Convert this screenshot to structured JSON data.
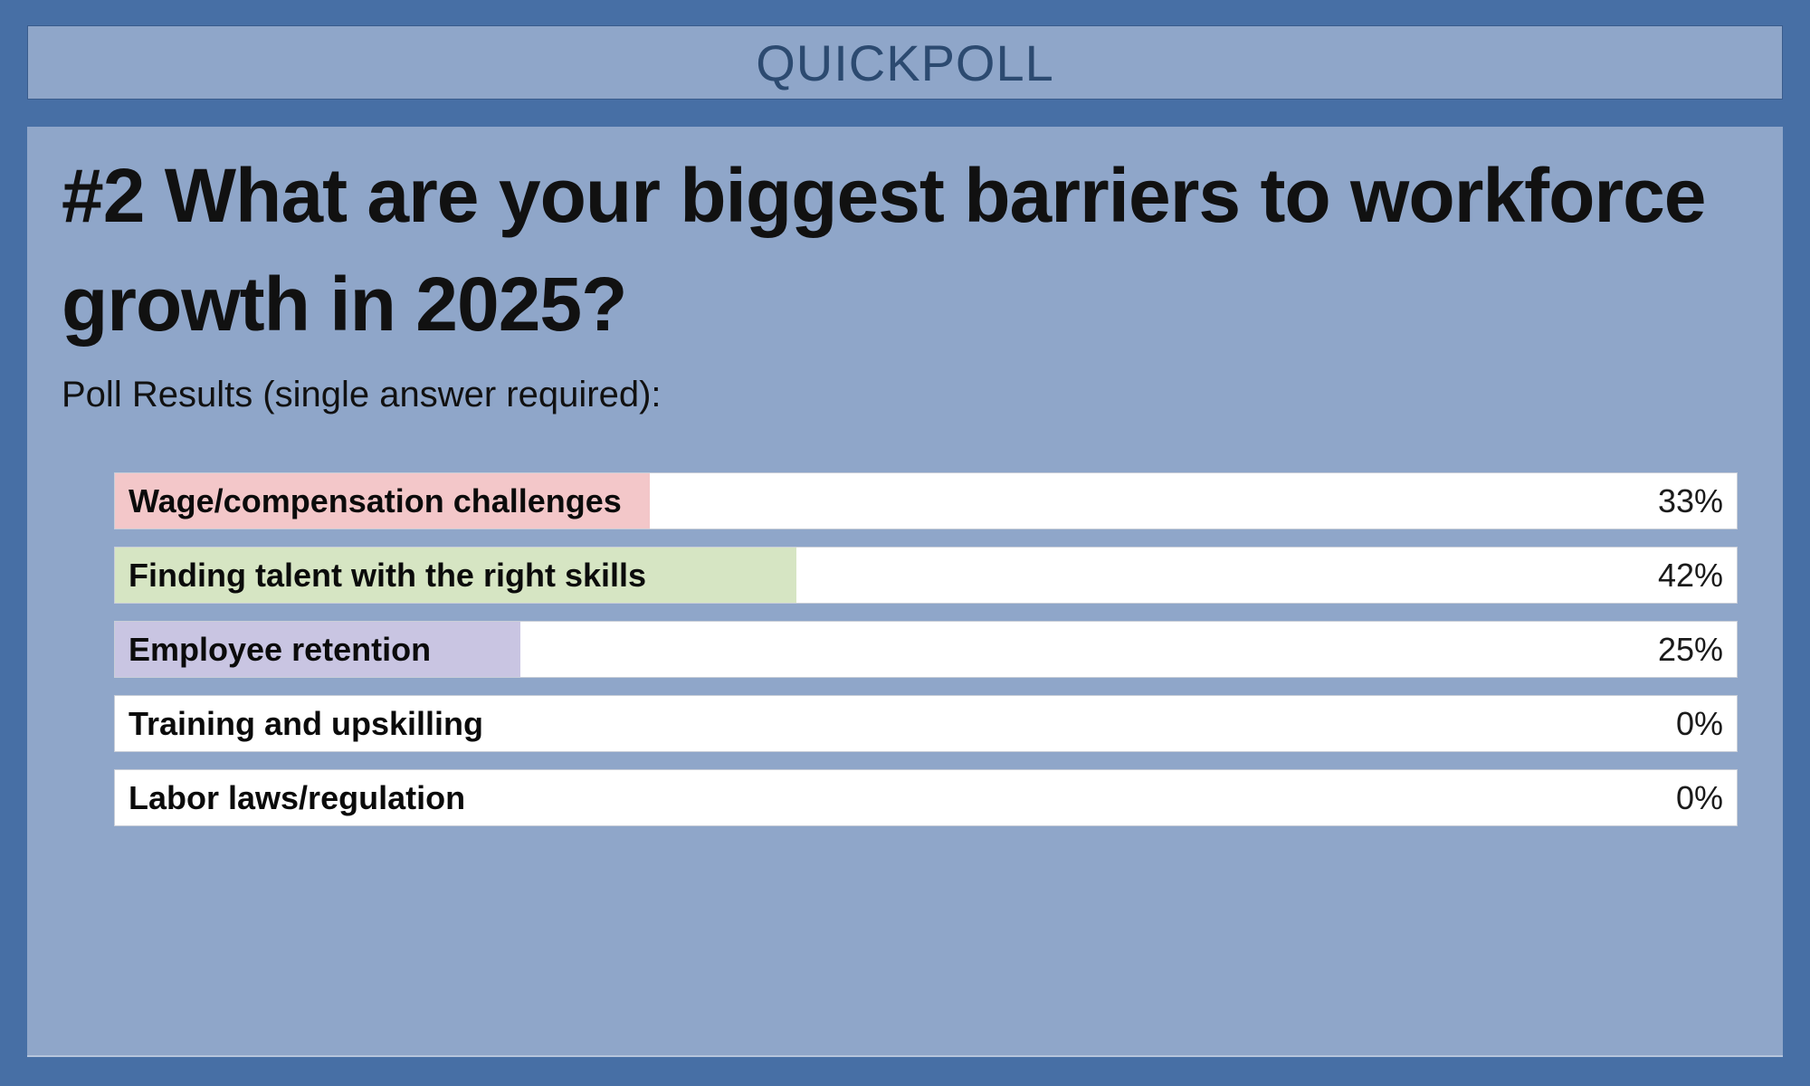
{
  "header": {
    "title": "QUICKPOLL"
  },
  "poll": {
    "question": "#2 What are your biggest barriers to workforce growth in 2025?",
    "results_caption": "Poll Results (single answer required):",
    "options": [
      {
        "label": "Wage/compensation challenges",
        "pct": 33,
        "pct_label": "33%",
        "fill_color": "#f3c7c9"
      },
      {
        "label": "Finding talent with the right skills",
        "pct": 42,
        "pct_label": "42%",
        "fill_color": "#d6e5c3"
      },
      {
        "label": "Employee retention",
        "pct": 25,
        "pct_label": "25%",
        "fill_color": "#c9c5e2"
      },
      {
        "label": "Training and upskilling",
        "pct": 0,
        "pct_label": "0%",
        "fill_color": "#ffffff"
      },
      {
        "label": "Labor laws/regulation",
        "pct": 0,
        "pct_label": "0%",
        "fill_color": "#ffffff"
      }
    ]
  },
  "colors": {
    "outer_background": "#476fa5",
    "panel_background": "#8fa6c9",
    "header_title_text": "#2c4a70",
    "header_border": "#3a5c8c",
    "body_text": "#111111",
    "bar_background": "#ffffff",
    "bar_border": "#c9ced8"
  },
  "chart_data": {
    "type": "bar",
    "title": "#2 What are your biggest barriers to workforce growth in 2025?",
    "subtitle": "Poll Results (single answer required):",
    "categories": [
      "Wage/compensation challenges",
      "Finding talent with the right skills",
      "Employee retention",
      "Training and upskilling",
      "Labor laws/regulation"
    ],
    "values": [
      33,
      42,
      25,
      0,
      0
    ],
    "value_format": "percent",
    "xlabel": "",
    "ylabel": "",
    "xlim": [
      0,
      100
    ],
    "orientation": "horizontal",
    "grid": false,
    "legend": false
  }
}
